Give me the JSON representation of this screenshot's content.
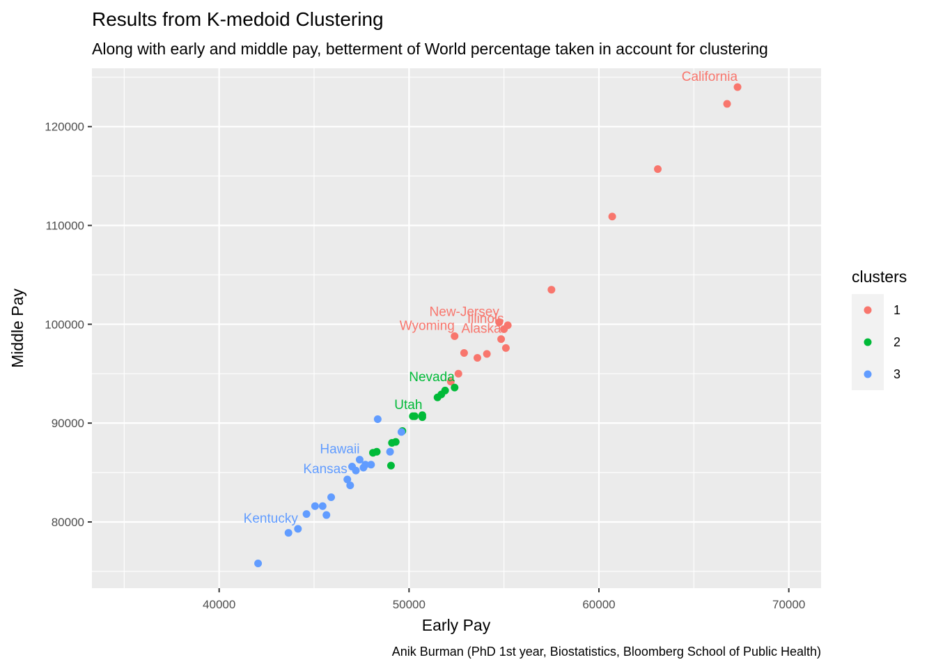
{
  "chart_data": {
    "type": "scatter",
    "title": "Results from K-medoid Clustering",
    "subtitle": "Along with early and middle pay, betterment of World percentage taken in account for clustering",
    "xlabel": "Early Pay",
    "ylabel": "Middle Pay",
    "caption": "Anik Burman (PhD 1st year, Biostatistics, Bloomberg School of Public Health)",
    "xlim": [
      33300,
      71700
    ],
    "ylim": [
      73300,
      125900
    ],
    "x_ticks": [
      40000,
      50000,
      60000,
      70000
    ],
    "x_tick_labels": [
      "40000",
      "50000",
      "60000",
      "70000"
    ],
    "x_minor_ticks": [
      35000,
      45000,
      55000,
      65000
    ],
    "y_ticks": [
      80000,
      90000,
      100000,
      110000,
      120000
    ],
    "y_tick_labels": [
      "80000",
      "90000",
      "100000",
      "110000",
      "120000"
    ],
    "y_minor_ticks": [
      75000,
      85000,
      95000,
      105000,
      115000,
      125000
    ],
    "grid": true,
    "legend": {
      "title": "clusters",
      "position": "right",
      "entries": [
        {
          "label": "1",
          "color": "#F8766D"
        },
        {
          "label": "2",
          "color": "#00BA38"
        },
        {
          "label": "3",
          "color": "#619CFF"
        }
      ]
    },
    "series": [
      {
        "cluster": "1",
        "color": "#F8766D",
        "points": [
          {
            "x": 67300,
            "y": 124000,
            "label": "California"
          },
          {
            "x": 66750,
            "y": 122300
          },
          {
            "x": 63100,
            "y": 115700
          },
          {
            "x": 60700,
            "y": 110900
          },
          {
            "x": 57500,
            "y": 103500
          },
          {
            "x": 55200,
            "y": 99900
          },
          {
            "x": 54750,
            "y": 100200,
            "label": "New-Jersey"
          },
          {
            "x": 55000,
            "y": 99500,
            "label": "Illinois"
          },
          {
            "x": 54850,
            "y": 98500,
            "label": "Alaska"
          },
          {
            "x": 55100,
            "y": 97600
          },
          {
            "x": 54100,
            "y": 97000
          },
          {
            "x": 53600,
            "y": 96600
          },
          {
            "x": 52900,
            "y": 97100
          },
          {
            "x": 52400,
            "y": 98800,
            "label": "Wyoming"
          },
          {
            "x": 52600,
            "y": 95000
          },
          {
            "x": 52200,
            "y": 94200
          }
        ]
      },
      {
        "cluster": "2",
        "color": "#00BA38",
        "points": [
          {
            "x": 52400,
            "y": 93600,
            "label": "Nevada"
          },
          {
            "x": 51900,
            "y": 93300
          },
          {
            "x": 51700,
            "y": 92900
          },
          {
            "x": 51500,
            "y": 92600
          },
          {
            "x": 50700,
            "y": 90800,
            "label": "Utah"
          },
          {
            "x": 50300,
            "y": 90700
          },
          {
            "x": 50200,
            "y": 90700
          },
          {
            "x": 50700,
            "y": 90600
          },
          {
            "x": 49650,
            "y": 89200
          },
          {
            "x": 49300,
            "y": 88100
          },
          {
            "x": 49100,
            "y": 88000
          },
          {
            "x": 48300,
            "y": 87100
          },
          {
            "x": 48100,
            "y": 87000
          },
          {
            "x": 49050,
            "y": 85700
          }
        ]
      },
      {
        "cluster": "3",
        "color": "#619CFF",
        "points": [
          {
            "x": 48350,
            "y": 90400
          },
          {
            "x": 49600,
            "y": 89100
          },
          {
            "x": 49000,
            "y": 87100
          },
          {
            "x": 47400,
            "y": 86300,
            "label": "Hawaii"
          },
          {
            "x": 48000,
            "y": 85800
          },
          {
            "x": 47700,
            "y": 85800
          },
          {
            "x": 47000,
            "y": 85600
          },
          {
            "x": 47600,
            "y": 85500
          },
          {
            "x": 47200,
            "y": 85200
          },
          {
            "x": 46750,
            "y": 84300,
            "label": "Kansas"
          },
          {
            "x": 46900,
            "y": 83700
          },
          {
            "x": 45900,
            "y": 82500
          },
          {
            "x": 45050,
            "y": 81600
          },
          {
            "x": 45450,
            "y": 81600
          },
          {
            "x": 44600,
            "y": 80800
          },
          {
            "x": 45650,
            "y": 80700
          },
          {
            "x": 44150,
            "y": 79300,
            "label": "Kentucky"
          },
          {
            "x": 43650,
            "y": 78900
          },
          {
            "x": 42050,
            "y": 75800
          }
        ]
      }
    ]
  }
}
